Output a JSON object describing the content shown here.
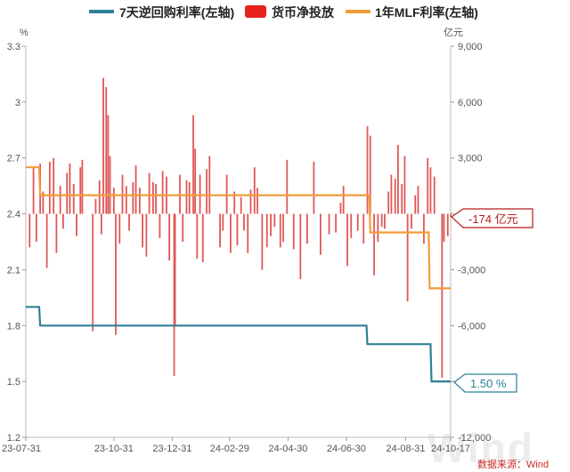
{
  "chart_data": {
    "type": "line+bar",
    "legend": [
      {
        "key": "repo7d",
        "label": "7天逆回购利率(左轴)",
        "color": "#2f7f96",
        "shape": "line"
      },
      {
        "key": "net",
        "label": "货币净投放",
        "color": "#e8221c",
        "shape": "box"
      },
      {
        "key": "mlf",
        "label": "1年MLF利率(左轴)",
        "color": "#f29c38",
        "shape": "line"
      }
    ],
    "left_axis": {
      "unit": "%",
      "min": 1.2,
      "max": 3.3,
      "ticks": [
        "1.2",
        "1.5",
        "1.8",
        "2.1",
        "2.4",
        "2.7",
        "3",
        "3.3"
      ]
    },
    "right_axis": {
      "unit": "亿元",
      "min": -12000,
      "max": 9000,
      "ticks": [
        "-12,000",
        "-9,000",
        "-6,000",
        "-3,000",
        "0",
        "3,000",
        "6,000",
        "9,000"
      ]
    },
    "x_axis": {
      "start": "2023-07-31",
      "end": "2024-10-17",
      "tick_labels": [
        "23-07-31",
        "23-10-31",
        "23-12-31",
        "24-02-29",
        "24-04-30",
        "24-06-30",
        "24-08-31",
        "24-10-17"
      ]
    },
    "series": {
      "repo7d": [
        [
          "2023-07-31",
          1.9
        ],
        [
          "2023-08-14",
          1.9
        ],
        [
          "2023-08-15",
          1.8
        ],
        [
          "2024-07-21",
          1.8
        ],
        [
          "2024-07-22",
          1.7
        ],
        [
          "2024-09-26",
          1.7
        ],
        [
          "2024-09-27",
          1.5
        ],
        [
          "2024-10-17",
          1.5
        ]
      ],
      "mlf": [
        [
          "2023-07-31",
          2.65
        ],
        [
          "2023-08-14",
          2.65
        ],
        [
          "2023-08-15",
          2.5
        ],
        [
          "2024-07-24",
          2.5
        ],
        [
          "2024-07-25",
          2.3
        ],
        [
          "2024-09-24",
          2.3
        ],
        [
          "2024-09-25",
          2.0
        ],
        [
          "2024-10-17",
          2.0
        ]
      ],
      "net_injection": [
        [
          "2023-08-04",
          -1800
        ],
        [
          "2023-08-08",
          2500
        ],
        [
          "2023-08-11",
          -1500
        ],
        [
          "2023-08-15",
          2700
        ],
        [
          "2023-08-18",
          1200
        ],
        [
          "2023-08-22",
          -2900
        ],
        [
          "2023-08-25",
          2800
        ],
        [
          "2023-08-29",
          3000
        ],
        [
          "2023-09-01",
          -2100
        ],
        [
          "2023-09-05",
          1500
        ],
        [
          "2023-09-08",
          -800
        ],
        [
          "2023-09-12",
          2200
        ],
        [
          "2023-09-15",
          2700
        ],
        [
          "2023-09-19",
          1600
        ],
        [
          "2023-09-22",
          -1200
        ],
        [
          "2023-09-26",
          2500
        ],
        [
          "2023-09-28",
          2900
        ],
        [
          "2023-10-09",
          -6300
        ],
        [
          "2023-10-12",
          800
        ],
        [
          "2023-10-16",
          1800
        ],
        [
          "2023-10-18",
          -1100
        ],
        [
          "2023-10-20",
          7300
        ],
        [
          "2023-10-23",
          6800
        ],
        [
          "2023-10-25",
          5300
        ],
        [
          "2023-10-27",
          3100
        ],
        [
          "2023-10-31",
          1400
        ],
        [
          "2023-11-02",
          -6500
        ],
        [
          "2023-11-06",
          -1600
        ],
        [
          "2023-11-09",
          2100
        ],
        [
          "2023-11-13",
          1500
        ],
        [
          "2023-11-16",
          -900
        ],
        [
          "2023-11-20",
          1700
        ],
        [
          "2023-11-23",
          2600
        ],
        [
          "2023-11-27",
          1400
        ],
        [
          "2023-11-30",
          -1800
        ],
        [
          "2023-12-04",
          -2300
        ],
        [
          "2023-12-07",
          2200
        ],
        [
          "2023-12-11",
          1700
        ],
        [
          "2023-12-14",
          1600
        ],
        [
          "2023-12-18",
          -1300
        ],
        [
          "2023-12-21",
          2300
        ],
        [
          "2023-12-25",
          2000
        ],
        [
          "2023-12-28",
          -2500
        ],
        [
          "2024-01-02",
          -8700
        ],
        [
          "2024-01-03",
          -6000
        ],
        [
          "2024-01-08",
          2100
        ],
        [
          "2024-01-11",
          -1500
        ],
        [
          "2024-01-15",
          1800
        ],
        [
          "2024-01-18",
          1700
        ],
        [
          "2024-01-22",
          5300
        ],
        [
          "2024-01-24",
          3500
        ],
        [
          "2024-01-26",
          -2400
        ],
        [
          "2024-01-29",
          2100
        ],
        [
          "2024-02-01",
          -2600
        ],
        [
          "2024-02-05",
          2400
        ],
        [
          "2024-02-08",
          3100
        ],
        [
          "2024-02-19",
          -1800
        ],
        [
          "2024-02-22",
          -900
        ],
        [
          "2024-02-26",
          2100
        ],
        [
          "2024-03-01",
          -2100
        ],
        [
          "2024-03-05",
          1200
        ],
        [
          "2024-03-08",
          -1700
        ],
        [
          "2024-03-12",
          900
        ],
        [
          "2024-03-15",
          -900
        ],
        [
          "2024-03-19",
          -2100
        ],
        [
          "2024-03-22",
          1300
        ],
        [
          "2024-03-26",
          2500
        ],
        [
          "2024-03-29",
          1400
        ],
        [
          "2024-04-03",
          -3000
        ],
        [
          "2024-04-08",
          -1800
        ],
        [
          "2024-04-12",
          -1200
        ],
        [
          "2024-04-16",
          -700
        ],
        [
          "2024-04-22",
          -1800
        ],
        [
          "2024-04-25",
          -1500
        ],
        [
          "2024-04-29",
          2900
        ],
        [
          "2024-05-06",
          -1900
        ],
        [
          "2024-05-13",
          -3500
        ],
        [
          "2024-05-20",
          -1600
        ],
        [
          "2024-05-27",
          2800
        ],
        [
          "2024-06-03",
          -2200
        ],
        [
          "2024-06-12",
          -1100
        ],
        [
          "2024-06-19",
          -1000
        ],
        [
          "2024-06-24",
          600
        ],
        [
          "2024-06-27",
          1500
        ],
        [
          "2024-07-01",
          -2800
        ],
        [
          "2024-07-05",
          -1300
        ],
        [
          "2024-07-12",
          -900
        ],
        [
          "2024-07-18",
          -1600
        ],
        [
          "2024-07-22",
          4700
        ],
        [
          "2024-07-25",
          4200
        ],
        [
          "2024-07-29",
          -3300
        ],
        [
          "2024-08-02",
          -1500
        ],
        [
          "2024-08-06",
          -700
        ],
        [
          "2024-08-09",
          -800
        ],
        [
          "2024-08-13",
          1200
        ],
        [
          "2024-08-16",
          2100
        ],
        [
          "2024-08-20",
          1900
        ],
        [
          "2024-08-23",
          3700
        ],
        [
          "2024-08-27",
          1600
        ],
        [
          "2024-08-30",
          3100
        ],
        [
          "2024-09-02",
          -4700
        ],
        [
          "2024-09-06",
          -800
        ],
        [
          "2024-09-10",
          1000
        ],
        [
          "2024-09-13",
          1500
        ],
        [
          "2024-09-19",
          -1600
        ],
        [
          "2024-09-23",
          3000
        ],
        [
          "2024-09-26",
          2500
        ],
        [
          "2024-09-30",
          2000
        ],
        [
          "2024-10-08",
          -8800
        ],
        [
          "2024-10-10",
          -1500
        ],
        [
          "2024-10-14",
          -1200
        ],
        [
          "2024-10-17",
          -174
        ]
      ]
    }
  },
  "callouts": {
    "net_last": "-174 亿元",
    "repo_last": "1.50 %"
  },
  "source_note": "数据来源：Wind",
  "watermark": "Wind"
}
